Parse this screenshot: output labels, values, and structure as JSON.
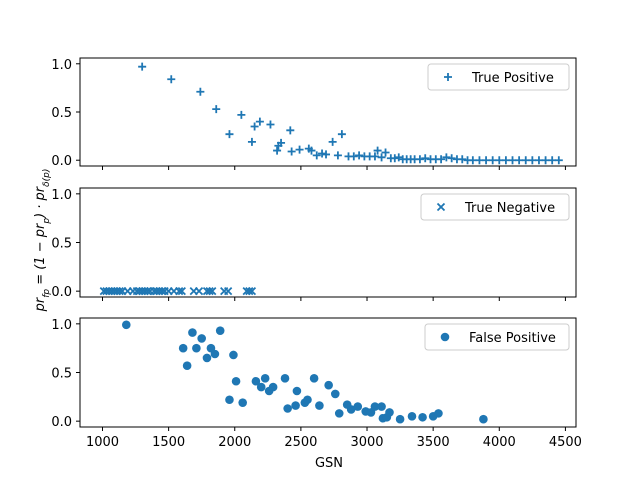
{
  "chart_data": {
    "type": "scatter",
    "shared_x": true,
    "xlabel": "GSN",
    "ylabel_parts": [
      "pr",
      "fp",
      " = (1 − pr",
      "p",
      ") · pr",
      "δ(p)"
    ],
    "xlim": [
      830,
      4580
    ],
    "xticks": [
      1000,
      1500,
      2000,
      2500,
      3000,
      3500,
      4000,
      4500
    ],
    "yticks": [
      0.0,
      0.5,
      1.0
    ],
    "ylim": [
      -0.06,
      1.06
    ],
    "color": "#1f77b4",
    "panels": [
      {
        "name": "true-positive",
        "legend": "True Positive",
        "marker": "plus",
        "points": [
          [
            1300,
            0.97
          ],
          [
            1520,
            0.84
          ],
          [
            1740,
            0.71
          ],
          [
            1860,
            0.53
          ],
          [
            1960,
            0.27
          ],
          [
            2050,
            0.47
          ],
          [
            2130,
            0.19
          ],
          [
            2150,
            0.35
          ],
          [
            2190,
            0.4
          ],
          [
            2270,
            0.37
          ],
          [
            2320,
            0.1
          ],
          [
            2330,
            0.15
          ],
          [
            2350,
            0.18
          ],
          [
            2420,
            0.31
          ],
          [
            2430,
            0.09
          ],
          [
            2490,
            0.11
          ],
          [
            2560,
            0.12
          ],
          [
            2580,
            0.1
          ],
          [
            2620,
            0.05
          ],
          [
            2660,
            0.07
          ],
          [
            2690,
            0.06
          ],
          [
            2740,
            0.19
          ],
          [
            2780,
            0.05
          ],
          [
            2810,
            0.27
          ],
          [
            2860,
            0.04
          ],
          [
            2900,
            0.04
          ],
          [
            2940,
            0.05
          ],
          [
            2980,
            0.04
          ],
          [
            3020,
            0.04
          ],
          [
            3060,
            0.04
          ],
          [
            3080,
            0.1
          ],
          [
            3110,
            0.03
          ],
          [
            3140,
            0.08
          ],
          [
            3180,
            0.02
          ],
          [
            3210,
            0.02
          ],
          [
            3240,
            0.03
          ],
          [
            3270,
            0.01
          ],
          [
            3300,
            0.01
          ],
          [
            3330,
            0.01
          ],
          [
            3360,
            0.01
          ],
          [
            3400,
            0.01
          ],
          [
            3440,
            0.02
          ],
          [
            3480,
            0.01
          ],
          [
            3520,
            0.01
          ],
          [
            3560,
            0.01
          ],
          [
            3600,
            0.03
          ],
          [
            3640,
            0.02
          ],
          [
            3680,
            0.01
          ],
          [
            3720,
            0.01
          ],
          [
            3760,
            0.0
          ],
          [
            3800,
            0.0
          ],
          [
            3850,
            0.0
          ],
          [
            3900,
            0.0
          ],
          [
            3950,
            0.0
          ],
          [
            4000,
            0.0
          ],
          [
            4050,
            0.0
          ],
          [
            4100,
            0.0
          ],
          [
            4150,
            0.0
          ],
          [
            4200,
            0.0
          ],
          [
            4250,
            0.0
          ],
          [
            4300,
            0.0
          ],
          [
            4350,
            0.0
          ],
          [
            4400,
            0.0
          ],
          [
            4450,
            0.0
          ]
        ]
      },
      {
        "name": "true-negative",
        "legend": "True Negative",
        "marker": "x",
        "points": [
          [
            1010,
            0.0
          ],
          [
            1030,
            0.0
          ],
          [
            1050,
            0.0
          ],
          [
            1070,
            0.0
          ],
          [
            1090,
            0.0
          ],
          [
            1110,
            0.0
          ],
          [
            1130,
            0.0
          ],
          [
            1150,
            0.0
          ],
          [
            1190,
            0.0
          ],
          [
            1230,
            0.0
          ],
          [
            1260,
            0.0
          ],
          [
            1280,
            0.0
          ],
          [
            1300,
            0.0
          ],
          [
            1320,
            0.0
          ],
          [
            1340,
            0.0
          ],
          [
            1360,
            0.0
          ],
          [
            1390,
            0.0
          ],
          [
            1410,
            0.0
          ],
          [
            1430,
            0.0
          ],
          [
            1450,
            0.0
          ],
          [
            1470,
            0.0
          ],
          [
            1500,
            0.0
          ],
          [
            1540,
            0.0
          ],
          [
            1580,
            0.0
          ],
          [
            1600,
            0.0
          ],
          [
            1690,
            0.0
          ],
          [
            1730,
            0.0
          ],
          [
            1790,
            0.0
          ],
          [
            1810,
            0.0
          ],
          [
            1830,
            0.0
          ],
          [
            1920,
            0.0
          ],
          [
            1950,
            0.0
          ],
          [
            2090,
            0.0
          ],
          [
            2110,
            0.0
          ],
          [
            2130,
            0.0
          ]
        ]
      },
      {
        "name": "false-positive",
        "legend": "False Positive",
        "marker": "circle",
        "points": [
          [
            1180,
            0.99
          ],
          [
            1610,
            0.75
          ],
          [
            1640,
            0.57
          ],
          [
            1680,
            0.91
          ],
          [
            1710,
            0.75
          ],
          [
            1750,
            0.85
          ],
          [
            1790,
            0.65
          ],
          [
            1820,
            0.75
          ],
          [
            1850,
            0.69
          ],
          [
            1890,
            0.93
          ],
          [
            1960,
            0.22
          ],
          [
            1990,
            0.68
          ],
          [
            2010,
            0.41
          ],
          [
            2060,
            0.19
          ],
          [
            2160,
            0.41
          ],
          [
            2200,
            0.35
          ],
          [
            2230,
            0.44
          ],
          [
            2260,
            0.31
          ],
          [
            2290,
            0.35
          ],
          [
            2380,
            0.44
          ],
          [
            2400,
            0.13
          ],
          [
            2460,
            0.16
          ],
          [
            2470,
            0.31
          ],
          [
            2530,
            0.19
          ],
          [
            2550,
            0.22
          ],
          [
            2600,
            0.44
          ],
          [
            2640,
            0.16
          ],
          [
            2710,
            0.37
          ],
          [
            2760,
            0.28
          ],
          [
            2790,
            0.08
          ],
          [
            2850,
            0.17
          ],
          [
            2880,
            0.12
          ],
          [
            2930,
            0.15
          ],
          [
            2990,
            0.1
          ],
          [
            3030,
            0.09
          ],
          [
            3060,
            0.15
          ],
          [
            3110,
            0.15
          ],
          [
            3120,
            0.03
          ],
          [
            3150,
            0.04
          ],
          [
            3170,
            0.09
          ],
          [
            3250,
            0.02
          ],
          [
            3340,
            0.05
          ],
          [
            3420,
            0.04
          ],
          [
            3500,
            0.05
          ],
          [
            3540,
            0.08
          ],
          [
            3880,
            0.02
          ]
        ]
      }
    ]
  }
}
